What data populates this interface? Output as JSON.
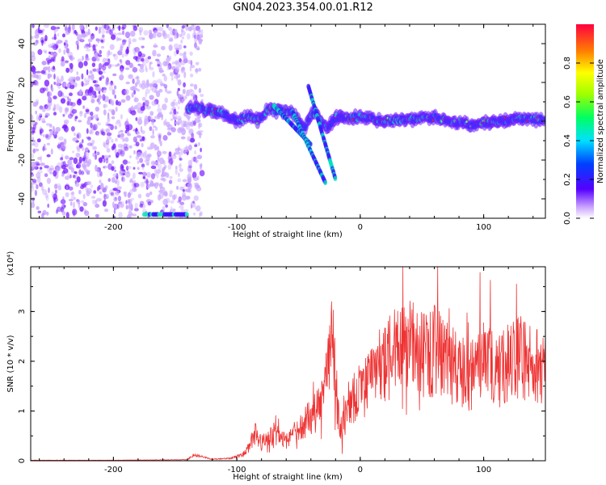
{
  "title": "GN04.2023.354.00.01.R12",
  "chart_data": [
    {
      "type": "heatmap",
      "xlabel": "Height of straight line (km)",
      "ylabel": "Frequency (Hz)",
      "xlim": [
        -267,
        150
      ],
      "ylim": [
        -50,
        50
      ],
      "x_ticks": [
        -200,
        -100,
        0,
        100
      ],
      "y_ticks": [
        -40,
        -20,
        0,
        20,
        40
      ],
      "colorbar": {
        "label": "Normalized spectral amplitude",
        "range": [
          0,
          1
        ],
        "ticks": [
          "0.0",
          "0.2",
          "0.4",
          "0.6",
          "0.8"
        ]
      },
      "ridge_x": [
        -140,
        -125,
        -110,
        -100,
        -90,
        -82,
        -75,
        -65,
        -55,
        -45,
        -38,
        -30,
        -26,
        -20,
        0,
        20,
        40,
        60,
        75,
        90,
        110,
        130,
        150
      ],
      "ridge_y": [
        7,
        6,
        4,
        0,
        3,
        0,
        6,
        5,
        4,
        -3,
        5,
        -1,
        -3,
        2,
        2,
        0,
        1,
        2,
        0,
        -2,
        0,
        1,
        1
      ],
      "colors": {
        "low": "#b07cff",
        "mid": "#00e0c0",
        "high": "#e02040"
      }
    },
    {
      "type": "line",
      "xlabel": "Height of straight line (km)",
      "ylabel": "SNR (10 * v/v)",
      "y_multiplier": "(x10⁴)",
      "xlim": [
        -267,
        150
      ],
      "ylim": [
        0,
        3.9
      ],
      "x_ticks": [
        -200,
        -100,
        0,
        100
      ],
      "y_ticks": [
        0,
        1,
        2,
        3
      ],
      "series": [
        {
          "color": "#ee3333",
          "x": [
            -267,
            -200,
            -140,
            -135,
            -120,
            -105,
            -95,
            -90,
            -85,
            -80,
            -70,
            -60,
            -50,
            -40,
            -35,
            -30,
            -25,
            -22,
            -18,
            -15,
            -10,
            -5,
            0,
            10,
            20,
            30,
            40,
            50,
            60,
            70,
            80,
            90,
            100,
            110,
            120,
            130,
            140,
            150
          ],
          "values": [
            0.01,
            0.01,
            0.02,
            0.12,
            0.03,
            0.05,
            0.12,
            0.25,
            0.55,
            0.35,
            0.55,
            0.4,
            0.6,
            0.9,
            1.0,
            1.2,
            1.9,
            2.6,
            0.9,
            0.6,
            1.1,
            1.3,
            1.4,
            1.7,
            2.0,
            2.2,
            2.3,
            2.1,
            2.2,
            2.0,
            1.8,
            1.7,
            2.0,
            1.8,
            2.0,
            2.1,
            1.9,
            2.0
          ]
        }
      ]
    }
  ]
}
